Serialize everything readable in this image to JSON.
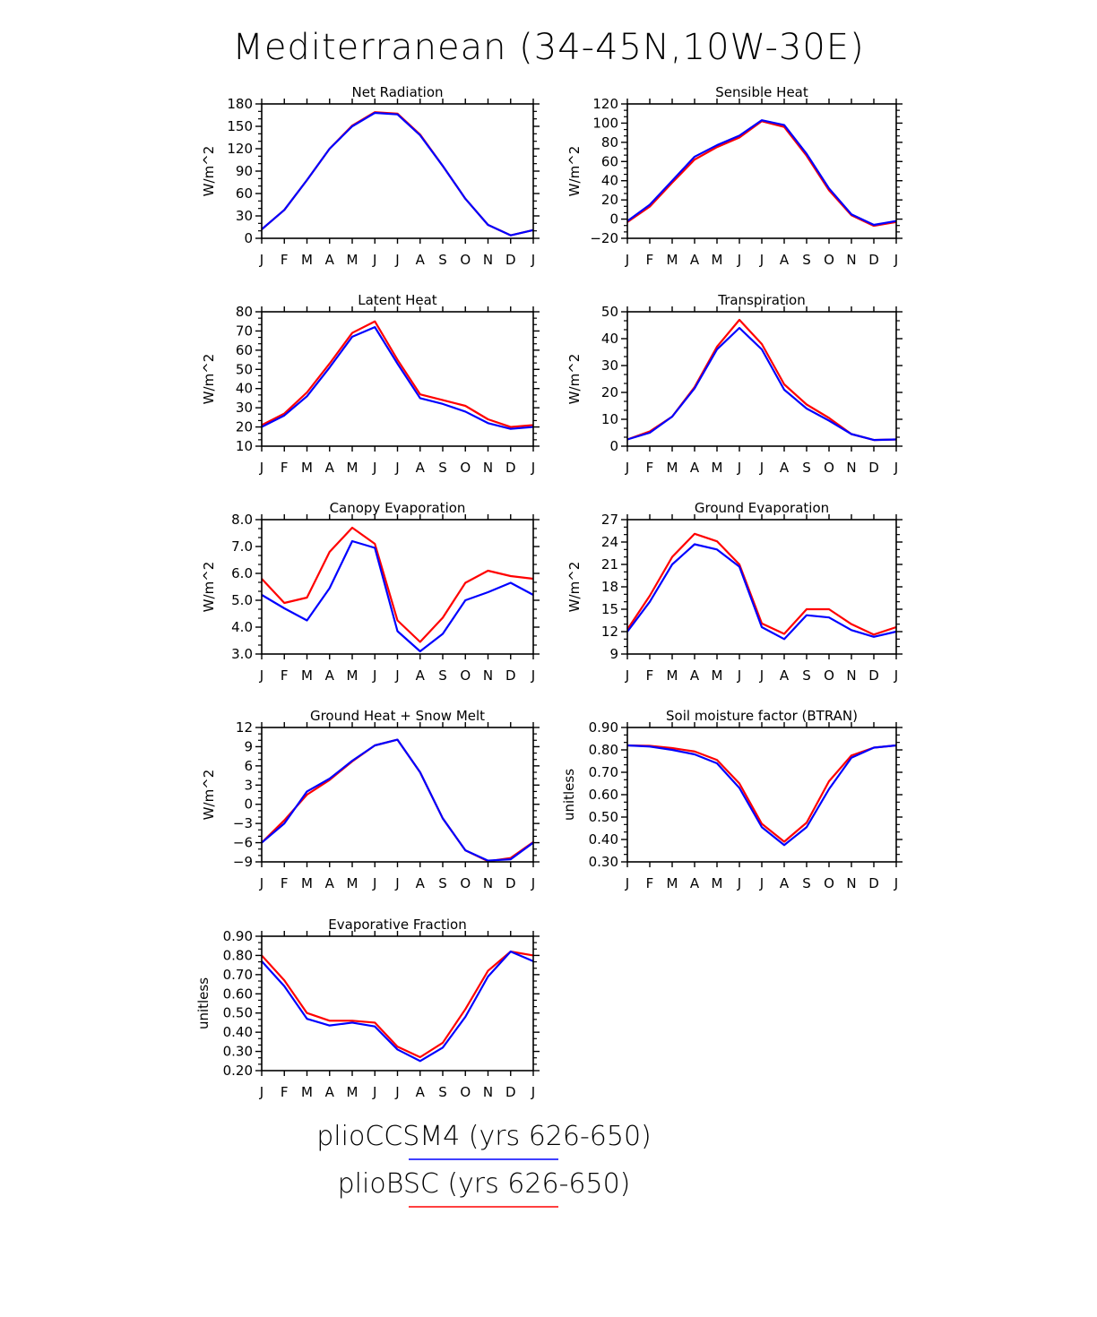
{
  "figure": {
    "title": "Mediterranean (34-45N,10W-30E)"
  },
  "legend": [
    {
      "name": "plioCCSM4 (yrs 626-650)",
      "color": "#0000ff"
    },
    {
      "name": "plioBSC (yrs 626-650)",
      "color": "#ff0000"
    }
  ],
  "chart_data": [
    {
      "type": "line",
      "title": "Net Radiation",
      "ylabel": "W/m^2",
      "x": [
        "J",
        "F",
        "M",
        "A",
        "M",
        "J",
        "J",
        "A",
        "S",
        "O",
        "N",
        "D",
        "J"
      ],
      "ylim": [
        0,
        180
      ],
      "yticks": [
        0,
        30,
        60,
        90,
        120,
        150,
        180
      ],
      "ytick_labels": [
        "0",
        "30",
        "60",
        "90",
        "120",
        "150",
        "180"
      ],
      "series": [
        {
          "name": "plioCCSM4 (yrs 626-650)",
          "color": "#0000ff",
          "values": [
            12,
            38,
            78,
            120,
            150,
            168,
            166,
            138,
            97,
            53,
            18,
            4,
            11
          ]
        },
        {
          "name": "plioBSC (yrs 626-650)",
          "color": "#ff0000",
          "values": [
            12,
            38,
            78,
            120,
            151,
            169,
            167,
            139,
            97,
            53,
            18,
            4,
            11
          ]
        }
      ]
    },
    {
      "type": "line",
      "title": "Sensible Heat",
      "ylabel": "W/m^2",
      "x": [
        "J",
        "F",
        "M",
        "A",
        "M",
        "J",
        "J",
        "A",
        "S",
        "O",
        "N",
        "D",
        "J"
      ],
      "ylim": [
        -20,
        120
      ],
      "yticks": [
        -20,
        0,
        20,
        40,
        60,
        80,
        100,
        120
      ],
      "ytick_labels": [
        "−20",
        "0",
        "20",
        "40",
        "60",
        "80",
        "100",
        "120"
      ],
      "series": [
        {
          "name": "plioCCSM4 (yrs 626-650)",
          "color": "#0000ff",
          "values": [
            -2,
            15,
            40,
            65,
            77,
            87,
            103,
            98,
            68,
            32,
            5,
            -6,
            -2
          ]
        },
        {
          "name": "plioBSC (yrs 626-650)",
          "color": "#ff0000",
          "values": [
            -3,
            13,
            38,
            62,
            75,
            85,
            102,
            96,
            66,
            30,
            4,
            -7,
            -3
          ]
        }
      ]
    },
    {
      "type": "line",
      "title": "Latent Heat",
      "ylabel": "W/m^2",
      "x": [
        "J",
        "F",
        "M",
        "A",
        "M",
        "J",
        "J",
        "A",
        "S",
        "O",
        "N",
        "D",
        "J"
      ],
      "ylim": [
        10,
        80
      ],
      "yticks": [
        10,
        20,
        30,
        40,
        50,
        60,
        70,
        80
      ],
      "ytick_labels": [
        "10",
        "20",
        "30",
        "40",
        "50",
        "60",
        "70",
        "80"
      ],
      "series": [
        {
          "name": "plioCCSM4 (yrs 626-650)",
          "color": "#0000ff",
          "values": [
            20,
            26,
            36,
            51,
            67,
            72,
            53,
            35,
            32,
            28,
            22,
            19,
            20
          ]
        },
        {
          "name": "plioBSC (yrs 626-650)",
          "color": "#ff0000",
          "values": [
            21,
            27,
            38,
            53,
            69,
            75,
            55,
            37,
            34,
            31,
            24,
            20,
            21
          ]
        }
      ]
    },
    {
      "type": "line",
      "title": "Transpiration",
      "ylabel": "W/m^2",
      "x": [
        "J",
        "F",
        "M",
        "A",
        "M",
        "J",
        "J",
        "A",
        "S",
        "O",
        "N",
        "D",
        "J"
      ],
      "ylim": [
        0,
        50
      ],
      "yticks": [
        0,
        10,
        20,
        30,
        40,
        50
      ],
      "ytick_labels": [
        "0",
        "10",
        "20",
        "30",
        "40",
        "50"
      ],
      "series": [
        {
          "name": "plioCCSM4 (yrs 626-650)",
          "color": "#0000ff",
          "values": [
            2.5,
            5,
            11,
            21.5,
            36,
            44,
            36,
            21,
            14,
            9.5,
            4.5,
            2.3,
            2.5
          ]
        },
        {
          "name": "plioBSC (yrs 626-650)",
          "color": "#ff0000",
          "values": [
            2.5,
            5.5,
            11,
            22,
            37,
            47,
            38,
            23,
            15.5,
            10.5,
            4.5,
            2.3,
            2.5
          ]
        }
      ]
    },
    {
      "type": "line",
      "title": "Canopy Evaporation",
      "ylabel": "W/m^2",
      "x": [
        "J",
        "F",
        "M",
        "A",
        "M",
        "J",
        "J",
        "A",
        "S",
        "O",
        "N",
        "D",
        "J"
      ],
      "ylim": [
        3.0,
        8.0
      ],
      "yticks": [
        3,
        4,
        5,
        6,
        7,
        8
      ],
      "ytick_labels": [
        "3.0",
        "4.0",
        "5.0",
        "6.0",
        "7.0",
        "8.0"
      ],
      "series": [
        {
          "name": "plioCCSM4 (yrs 626-650)",
          "color": "#0000ff",
          "values": [
            5.2,
            4.7,
            4.25,
            5.45,
            7.2,
            6.95,
            3.85,
            3.1,
            3.75,
            5.0,
            5.3,
            5.65,
            5.2
          ]
        },
        {
          "name": "plioBSC (yrs 626-650)",
          "color": "#ff0000",
          "values": [
            5.8,
            4.9,
            5.1,
            6.8,
            7.7,
            7.1,
            4.25,
            3.45,
            4.35,
            5.65,
            6.1,
            5.9,
            5.8
          ]
        }
      ]
    },
    {
      "type": "line",
      "title": "Ground Evaporation",
      "ylabel": "W/m^2",
      "x": [
        "J",
        "F",
        "M",
        "A",
        "M",
        "J",
        "J",
        "A",
        "S",
        "O",
        "N",
        "D",
        "J"
      ],
      "ylim": [
        9,
        27
      ],
      "yticks": [
        9,
        12,
        15,
        18,
        21,
        24,
        27
      ],
      "ytick_labels": [
        "9",
        "12",
        "15",
        "18",
        "21",
        "24",
        "27"
      ],
      "series": [
        {
          "name": "plioCCSM4 (yrs 626-650)",
          "color": "#0000ff",
          "values": [
            12,
            16,
            21,
            23.7,
            23,
            20.7,
            12.6,
            11,
            14.2,
            13.9,
            12.2,
            11.3,
            12
          ]
        },
        {
          "name": "plioBSC (yrs 626-650)",
          "color": "#ff0000",
          "values": [
            12.3,
            16.8,
            22,
            25.1,
            24.1,
            21,
            13.1,
            11.7,
            15,
            15,
            13,
            11.6,
            12.6
          ]
        }
      ]
    },
    {
      "type": "line",
      "title": "Ground Heat + Snow Melt",
      "ylabel": "W/m^2",
      "x": [
        "J",
        "F",
        "M",
        "A",
        "M",
        "J",
        "J",
        "A",
        "S",
        "O",
        "N",
        "D",
        "J"
      ],
      "ylim": [
        -9,
        12
      ],
      "yticks": [
        -9,
        -6,
        -3,
        0,
        3,
        6,
        9,
        12
      ],
      "ytick_labels": [
        "−9",
        "−6",
        "−3",
        "0",
        "3",
        "6",
        "9",
        "12"
      ],
      "series": [
        {
          "name": "plioCCSM4 (yrs 626-650)",
          "color": "#0000ff",
          "values": [
            -6,
            -3,
            2,
            4,
            6.8,
            9.2,
            10.1,
            5,
            -2.2,
            -7.2,
            -8.8,
            -8.6,
            -6
          ]
        },
        {
          "name": "plioBSC (yrs 626-650)",
          "color": "#ff0000",
          "values": [
            -6,
            -2.5,
            1.5,
            3.8,
            6.7,
            9.2,
            10.1,
            5,
            -2.2,
            -7.2,
            -8.9,
            -8.4,
            -5.9
          ]
        }
      ]
    },
    {
      "type": "line",
      "title": "Soil moisture factor (BTRAN)",
      "ylabel": "unitless",
      "x": [
        "J",
        "F",
        "M",
        "A",
        "M",
        "J",
        "J",
        "A",
        "S",
        "O",
        "N",
        "D",
        "J"
      ],
      "ylim": [
        0.3,
        0.9
      ],
      "yticks": [
        0.3,
        0.4,
        0.5,
        0.6,
        0.7,
        0.8,
        0.9
      ],
      "ytick_labels": [
        "0.30",
        "0.40",
        "0.50",
        "0.60",
        "0.70",
        "0.80",
        "0.90"
      ],
      "series": [
        {
          "name": "plioCCSM4 (yrs 626-650)",
          "color": "#0000ff",
          "values": [
            0.82,
            0.815,
            0.8,
            0.78,
            0.74,
            0.63,
            0.455,
            0.375,
            0.455,
            0.625,
            0.765,
            0.81,
            0.82
          ]
        },
        {
          "name": "plioBSC (yrs 626-650)",
          "color": "#ff0000",
          "values": [
            0.82,
            0.818,
            0.808,
            0.793,
            0.755,
            0.65,
            0.47,
            0.39,
            0.475,
            0.66,
            0.775,
            0.81,
            0.82
          ]
        }
      ]
    },
    {
      "type": "line",
      "title": "Evaporative Fraction",
      "ylabel": "unitless",
      "x": [
        "J",
        "F",
        "M",
        "A",
        "M",
        "J",
        "J",
        "A",
        "S",
        "O",
        "N",
        "D",
        "J"
      ],
      "ylim": [
        0.2,
        0.9
      ],
      "yticks": [
        0.2,
        0.3,
        0.4,
        0.5,
        0.6,
        0.7,
        0.8,
        0.9
      ],
      "ytick_labels": [
        "0.20",
        "0.30",
        "0.40",
        "0.50",
        "0.60",
        "0.70",
        "0.80",
        "0.90"
      ],
      "series": [
        {
          "name": "plioCCSM4 (yrs 626-650)",
          "color": "#0000ff",
          "values": [
            0.77,
            0.64,
            0.47,
            0.435,
            0.45,
            0.43,
            0.31,
            0.25,
            0.32,
            0.48,
            0.69,
            0.82,
            0.77
          ]
        },
        {
          "name": "plioBSC (yrs 626-650)",
          "color": "#ff0000",
          "values": [
            0.8,
            0.67,
            0.5,
            0.46,
            0.46,
            0.45,
            0.325,
            0.27,
            0.345,
            0.52,
            0.72,
            0.82,
            0.8
          ]
        }
      ]
    }
  ]
}
